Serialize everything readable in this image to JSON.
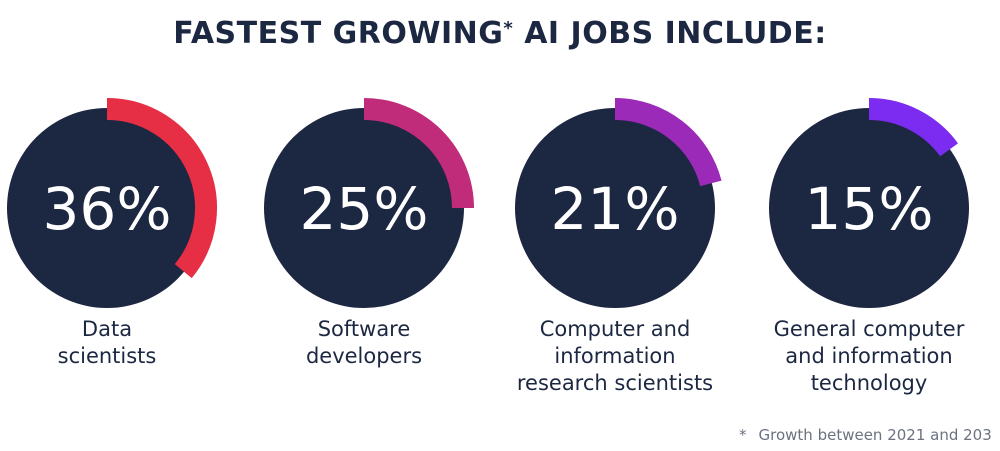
{
  "header": {
    "title_main": "FASTEST GROWING",
    "title_star": "*",
    "title_rest": " AI JOBS INCLUDE:"
  },
  "chart_data": {
    "type": "pie",
    "categories": [
      "Data scientists",
      "Software developers",
      "Computer and information research scientists",
      "General computer and information technology"
    ],
    "values": [
      36,
      25,
      21,
      15
    ],
    "value_labels": [
      "36%",
      "25%",
      "21%",
      "15%"
    ],
    "colors": [
      "#e62e45",
      "#c02b7a",
      "#9b2ab9",
      "#7b2cf0"
    ],
    "circle_color": "#1c2742",
    "label_lines": [
      "Data\nscientists",
      "Software\ndevelopers",
      "Computer and\ninformation\nresearch scientists",
      "General computer\nand information\ntechnology"
    ]
  },
  "footnote": {
    "marker": "*",
    "text": "Growth between 2021 and 203"
  }
}
